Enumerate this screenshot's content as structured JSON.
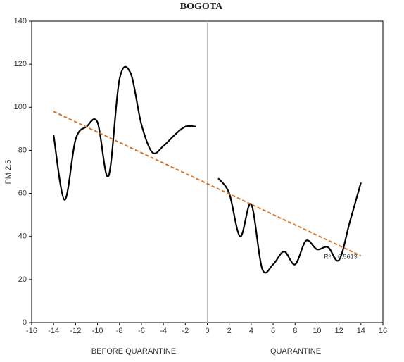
{
  "chart_data": {
    "type": "line",
    "title": "BOGOTA",
    "y_label": "PM 2.5",
    "group_labels": [
      "BEFORE QUARANTINE",
      "QUARANTINE"
    ],
    "xlim": [
      -16,
      16
    ],
    "xticks": [
      -16,
      -14,
      -12,
      -10,
      -8,
      -6,
      -4,
      -2,
      0,
      2,
      4,
      6,
      8,
      10,
      12,
      14,
      16
    ],
    "ylim": [
      0,
      140
    ],
    "yticks": [
      0,
      20,
      40,
      60,
      80,
      100,
      120,
      140
    ],
    "divider_x": 0,
    "series": [
      {
        "color": "#000000",
        "x": [
          -14,
          -13,
          -12,
          -11,
          -10,
          -9,
          -8,
          -7,
          -6,
          -5,
          -4,
          -3,
          -2,
          -1
        ],
        "values": [
          87,
          57,
          85,
          91,
          93,
          68,
          113,
          116,
          92,
          79,
          82,
          87,
          91,
          91
        ]
      },
      {
        "color": "#000000",
        "x": [
          1,
          2,
          3,
          4,
          5,
          6,
          7,
          8,
          9,
          10,
          11,
          12,
          13,
          14
        ],
        "values": [
          67,
          60,
          40,
          55,
          25,
          27,
          33,
          27,
          38,
          34,
          35,
          29,
          47,
          65
        ]
      },
      {
        "color": "#d4752a",
        "dashed": true,
        "x": [
          -14,
          14
        ],
        "values": [
          98,
          31
        ]
      }
    ],
    "annotation": "R² = 0.5613"
  }
}
